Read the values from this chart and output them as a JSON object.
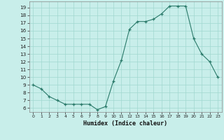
{
  "x": [
    0,
    1,
    2,
    3,
    4,
    5,
    6,
    7,
    8,
    9,
    10,
    11,
    12,
    13,
    14,
    15,
    16,
    17,
    18,
    19,
    20,
    21,
    22,
    23
  ],
  "y": [
    9,
    8.5,
    7.5,
    7,
    6.5,
    6.5,
    6.5,
    6.5,
    5.8,
    6.2,
    9.5,
    12.2,
    16.2,
    17.2,
    17.2,
    17.5,
    18.2,
    19.2,
    19.2,
    19.2,
    15,
    13,
    12,
    10
  ],
  "xlabel": "Humidex (Indice chaleur)",
  "ylim": [
    5.5,
    19.8
  ],
  "xlim": [
    -0.5,
    23.5
  ],
  "yticks": [
    6,
    7,
    8,
    9,
    10,
    11,
    12,
    13,
    14,
    15,
    16,
    17,
    18,
    19
  ],
  "xticks": [
    0,
    1,
    2,
    3,
    4,
    5,
    6,
    7,
    8,
    9,
    10,
    11,
    12,
    13,
    14,
    15,
    16,
    17,
    18,
    19,
    20,
    21,
    22,
    23
  ],
  "line_color": "#2a7a6a",
  "bg_color": "#c8eeea",
  "grid_color": "#a0d8d0",
  "fig_bg": "#c8eeea",
  "xlabel_fontsize": 6.0,
  "ytick_fontsize": 5.2,
  "xtick_fontsize": 4.5
}
